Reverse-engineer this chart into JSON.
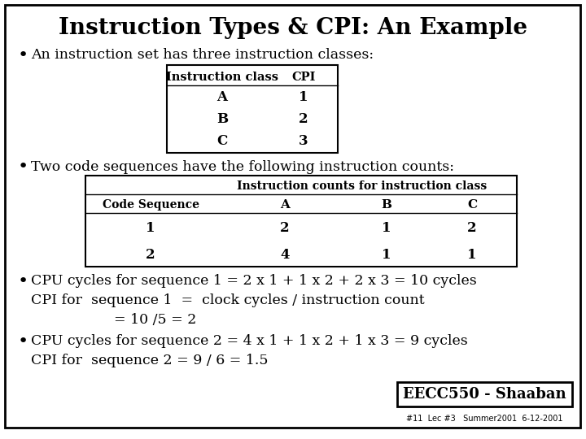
{
  "title": "Instruction Types & CPI: An Example",
  "bg_color": "#ffffff",
  "border_color": "#000000",
  "text_color": "#000000",
  "title_fontsize": 20,
  "body_fontsize": 12.5,
  "bullet1": "An instruction set has three instruction classes:",
  "table1_headers": [
    "Instruction class",
    "CPI"
  ],
  "table1_rows": [
    [
      "A",
      "1"
    ],
    [
      "B",
      "2"
    ],
    [
      "C",
      "3"
    ]
  ],
  "bullet2": "Two code sequences have the following instruction counts:",
  "table2_header_span": "Instruction counts for instruction class",
  "table2_col_headers": [
    "Code Sequence",
    "A",
    "B",
    "C"
  ],
  "table2_rows": [
    [
      "1",
      "2",
      "1",
      "2"
    ],
    [
      "2",
      "4",
      "1",
      "1"
    ]
  ],
  "bullet3_line1": "CPU cycles for sequence 1 = 2 x 1 + 1 x 2 + 2 x 3 = 10 cycles",
  "bullet3_line2": "CPI for  sequence 1  =  clock cycles / instruction count",
  "bullet3_line3": "= 10 /5 = 2",
  "bullet4_line1": "CPU cycles for sequence 2 = 4 x 1 + 1 x 2 + 1 x 3 = 9 cycles",
  "bullet4_line2": "CPI for  sequence 2 = 9 / 6 = 1.5",
  "footer_label": "EECC550 - Shaaban",
  "footer_sub": "#11  Lec #3   Summer2001  6-12-2001"
}
